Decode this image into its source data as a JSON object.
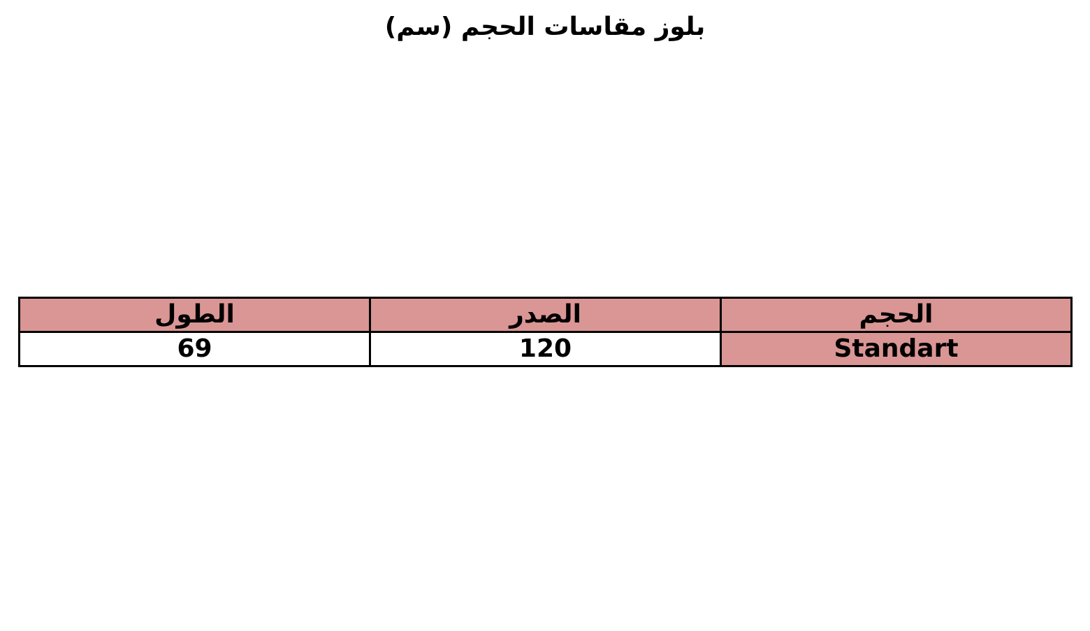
{
  "title": "بلوز مقاسات الحجم (سم)",
  "colors": {
    "header_fill": "#DA9694",
    "border": "#000000"
  },
  "table": {
    "headers": [
      "الحجم",
      "الصدر",
      "الطول"
    ],
    "rows": [
      [
        "Standart",
        "120",
        "69"
      ]
    ]
  }
}
